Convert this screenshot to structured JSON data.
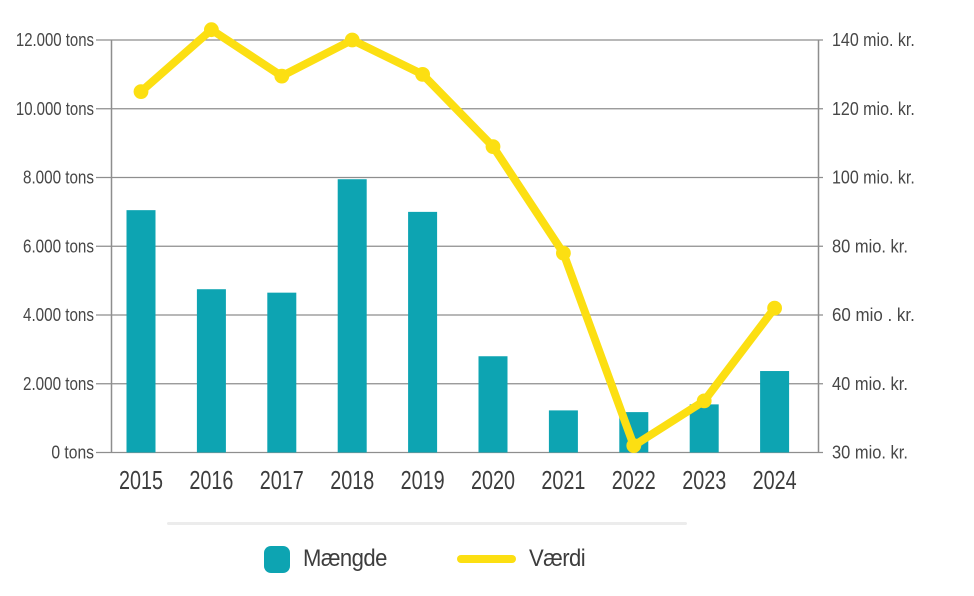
{
  "chart_data": {
    "type": "combo-bar-line",
    "title": "",
    "categories": [
      "2015",
      "2016",
      "2017",
      "2018",
      "2019",
      "2020",
      "2021",
      "2022",
      "2023",
      "2024"
    ],
    "series": [
      {
        "name": "Mængde",
        "type": "bar",
        "axis": "left",
        "unit": "tons",
        "values": [
          7050,
          4750,
          4650,
          7950,
          7000,
          2800,
          1225,
          1175,
          1400,
          2370
        ]
      },
      {
        "name": "Værdi",
        "type": "line",
        "axis": "right",
        "unit": "mio. kr.",
        "values": [
          125,
          143,
          129.5,
          140,
          130,
          109,
          78,
          31,
          37.5,
          62
        ]
      }
    ],
    "left_axis": {
      "range": [
        0,
        12000
      ],
      "ticks": [
        {
          "value": 0,
          "label": "0 tons"
        },
        {
          "value": 2000,
          "label": "2.000 tons"
        },
        {
          "value": 4000,
          "label": "4.000 tons"
        },
        {
          "value": 6000,
          "label": "6.000 tons"
        },
        {
          "value": 8000,
          "label": "8.000 tons"
        },
        {
          "value": 10000,
          "label": "10.000 tons"
        },
        {
          "value": 12000,
          "label": "12.000 tons"
        }
      ]
    },
    "right_axis": {
      "scale_hint": "all ticks equally spaced, including the short 30-to-40 step at the bottom",
      "ticks": [
        {
          "value": 30,
          "label": "30 mio. kr."
        },
        {
          "value": 40,
          "label": "40 mio. kr."
        },
        {
          "value": 60,
          "label": "60 mio . kr."
        },
        {
          "value": 80,
          "label": "80 mio. kr."
        },
        {
          "value": 100,
          "label": "100 mio. kr."
        },
        {
          "value": 120,
          "label": "120 mio. kr."
        },
        {
          "value": 140,
          "label": "140 mio. kr."
        }
      ]
    },
    "legend": [
      {
        "label": "Mængde",
        "swatch": "square"
      },
      {
        "label": "Værdi",
        "swatch": "line"
      }
    ],
    "grid": true,
    "legend_position": "bottom",
    "colors": {
      "bar": "#0da4b2",
      "line": "#fcdf12",
      "grid": "#8e8e8e",
      "axis": "#8e8e8e",
      "tick_text": "#474747",
      "category_text": "#3d3d3d",
      "divider": "#ececec",
      "background": "#ffffff"
    }
  }
}
